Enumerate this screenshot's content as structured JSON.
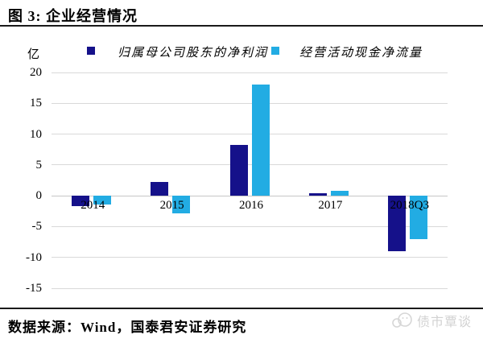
{
  "header": {
    "title": "图 3: 企业经营情况"
  },
  "footer": {
    "source": "数据来源：Wind，国泰君安证券研究"
  },
  "watermark": {
    "label": "债市覃谈",
    "icon": "chat-bubbles-icon",
    "color": "#d2d2d2"
  },
  "colors": {
    "net_profit": "#15118a",
    "cash_flow": "#22ace3",
    "gridline": "#d9d9d9",
    "rule": "#1a1a1a"
  },
  "chart_data": {
    "type": "bar",
    "title": "企业经营情况",
    "unit_label": "亿",
    "categories": [
      "2014",
      "2015",
      "2016",
      "2017",
      "2018Q3"
    ],
    "series": [
      {
        "name": "归属母公司股东的净利润",
        "color": "#15118a",
        "values": [
          -1.7,
          2.2,
          8.3,
          0.4,
          -9.0
        ]
      },
      {
        "name": "经营活动现金净流量",
        "color": "#22ace3",
        "values": [
          -1.4,
          -2.8,
          18.0,
          0.8,
          -7.0
        ]
      }
    ],
    "ylim": [
      -15,
      20
    ],
    "ytick_step": 5,
    "yticks": [
      20,
      15,
      10,
      5,
      0,
      -5,
      -10,
      -15
    ],
    "grid": true,
    "legend_position": "top",
    "xlabel": "",
    "ylabel": "亿"
  }
}
